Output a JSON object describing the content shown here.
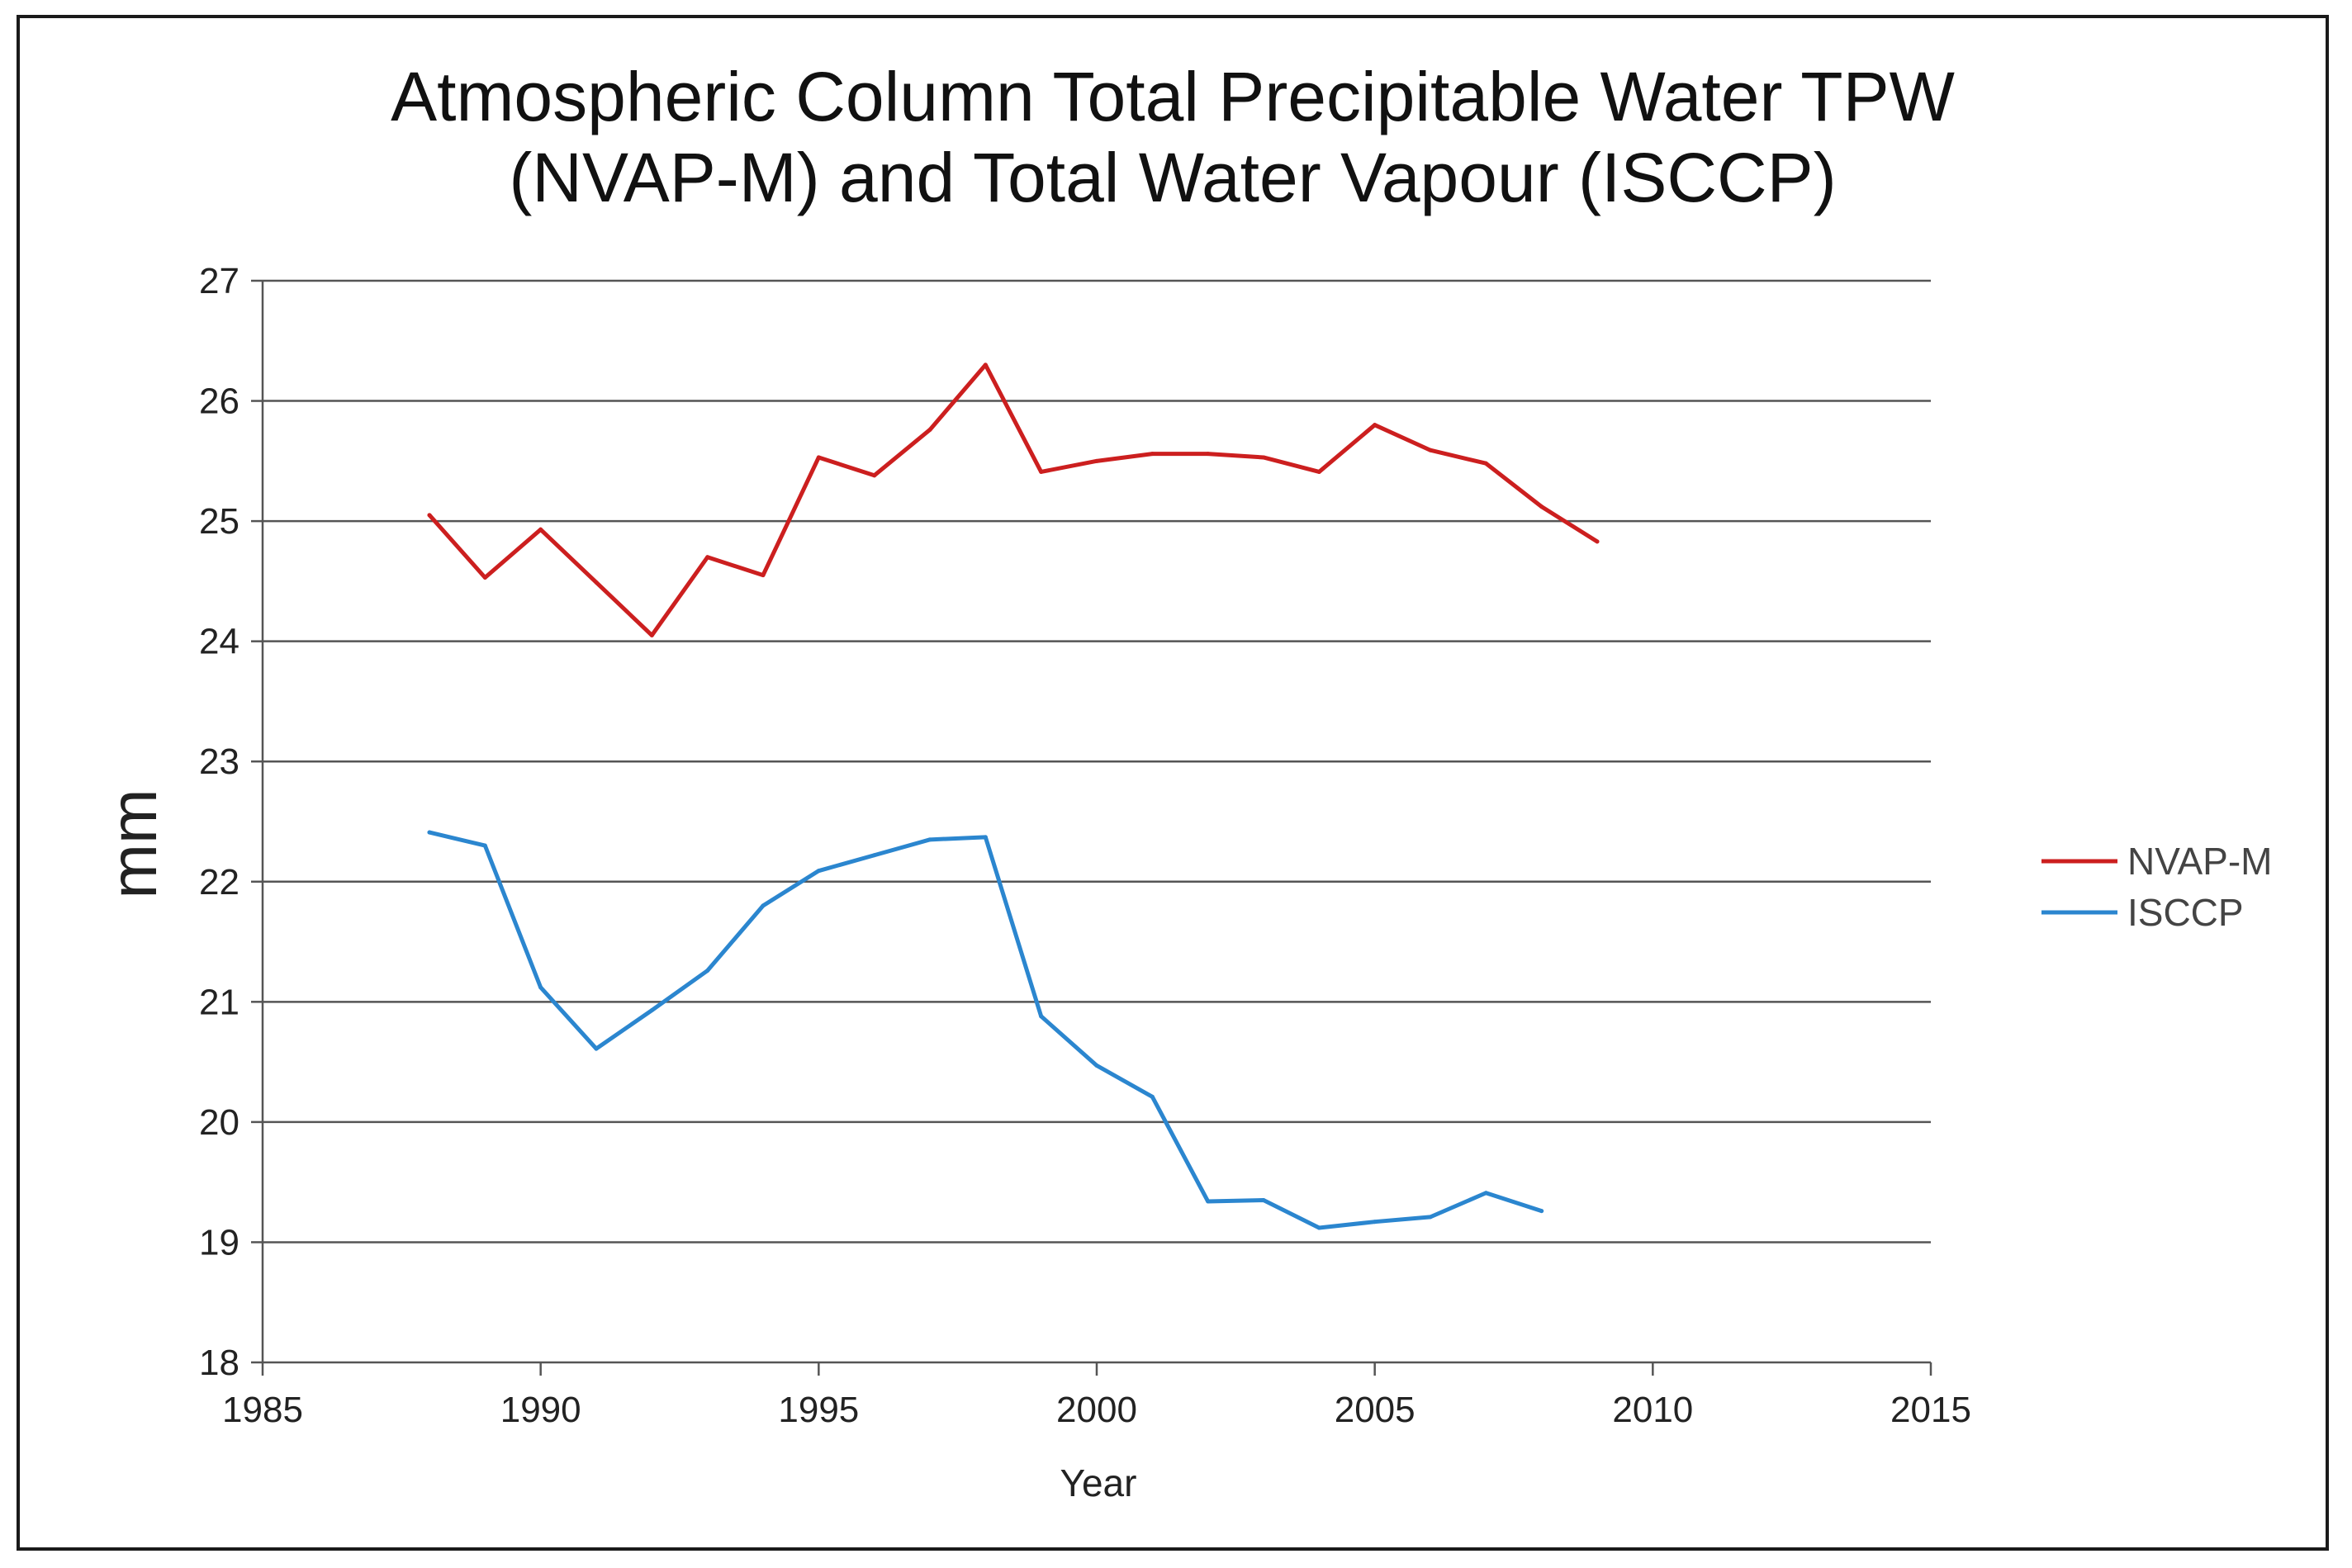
{
  "chart_data": {
    "type": "line",
    "title": [
      "Atmospheric Column Total Precipitable Water TPW",
      "(NVAP-M) and Total Water Vapour (ISCCP)"
    ],
    "xlabel": "Year",
    "ylabel": "mm",
    "xlim": [
      1985,
      2015
    ],
    "ylim": [
      18,
      27
    ],
    "xticks": [
      "1985",
      "1990",
      "1995",
      "2000",
      "2005",
      "2010",
      "2015"
    ],
    "yticks": [
      "18",
      "19",
      "20",
      "21",
      "22",
      "23",
      "24",
      "25",
      "26",
      "27"
    ],
    "grid": true,
    "legend_position": "right",
    "series": [
      {
        "name": "NVAP-M",
        "color": "#cc1f1f",
        "x": [
          1988,
          1989,
          1990,
          1991,
          1992,
          1993,
          1994,
          1995,
          1996,
          1997,
          1998,
          1999,
          2000,
          2001,
          2002,
          2003,
          2004,
          2005,
          2006,
          2007,
          2008,
          2009
        ],
        "values": [
          25.05,
          24.53,
          24.93,
          24.49,
          24.05,
          24.7,
          24.55,
          25.53,
          25.38,
          25.76,
          26.3,
          25.41,
          25.5,
          25.56,
          25.56,
          25.53,
          25.41,
          25.8,
          25.59,
          25.48,
          25.12,
          24.83
        ]
      },
      {
        "name": "ISCCP",
        "color": "#2b86cf",
        "x": [
          1988,
          1989,
          1990,
          1991,
          1992,
          1993,
          1994,
          1995,
          1996,
          1997,
          1998,
          1999,
          2000,
          2001,
          2002,
          2003,
          2004,
          2005,
          2006,
          2007,
          2008
        ],
        "values": [
          22.41,
          22.3,
          21.12,
          20.61,
          20.93,
          21.26,
          21.8,
          22.09,
          22.22,
          22.35,
          22.37,
          20.88,
          20.47,
          20.21,
          19.34,
          19.35,
          19.12,
          19.17,
          19.21,
          19.41,
          19.26
        ]
      }
    ]
  }
}
